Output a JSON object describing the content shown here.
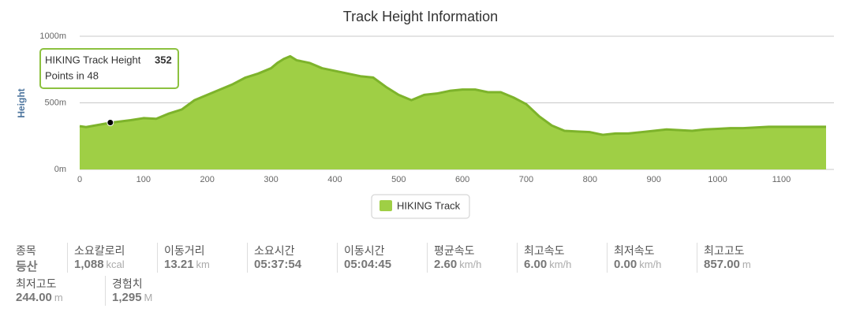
{
  "chart_data": {
    "type": "area",
    "title": "Track Height Information",
    "y_label": "Height",
    "x": [
      0,
      10,
      30,
      50,
      80,
      100,
      120,
      140,
      160,
      180,
      200,
      220,
      240,
      260,
      280,
      300,
      310,
      320,
      330,
      340,
      360,
      380,
      400,
      420,
      440,
      460,
      480,
      500,
      520,
      540,
      560,
      580,
      600,
      620,
      640,
      660,
      680,
      700,
      720,
      740,
      760,
      780,
      800,
      820,
      840,
      860,
      880,
      900,
      920,
      940,
      960,
      980,
      1000,
      1020,
      1040,
      1060,
      1080,
      1100,
      1120,
      1140,
      1160,
      1170
    ],
    "series": [
      {
        "name": "HIKING Track",
        "color": "#9fcf45",
        "line_color": "#7db32b",
        "values": [
          325,
          318,
          335,
          352,
          370,
          385,
          380,
          420,
          450,
          520,
          560,
          600,
          640,
          690,
          720,
          760,
          800,
          830,
          850,
          820,
          800,
          760,
          740,
          720,
          700,
          690,
          620,
          560,
          520,
          560,
          570,
          590,
          600,
          600,
          580,
          580,
          540,
          490,
          400,
          330,
          290,
          285,
          280,
          260,
          270,
          270,
          280,
          290,
          300,
          295,
          290,
          300,
          305,
          310,
          310,
          315,
          320,
          320,
          320,
          320,
          320,
          320
        ]
      }
    ],
    "xlim": [
      0,
      1170
    ],
    "xticks": [
      0,
      100,
      200,
      300,
      400,
      500,
      600,
      700,
      800,
      900,
      1000,
      1100
    ],
    "ylim": [
      0,
      1000
    ],
    "yticks": [
      {
        "value": 0,
        "label": "0m"
      },
      {
        "value": 500,
        "label": "500m"
      },
      {
        "value": 1000,
        "label": "1000m"
      }
    ],
    "grid": true,
    "tooltip": {
      "title": "HIKING Track Height",
      "x": 48,
      "value": 352,
      "text": "Points in 48"
    }
  },
  "stats": [
    {
      "label": "종목",
      "value": "등산"
    },
    {
      "label": "소요칼로리",
      "value": "1,088",
      "unit": "kcal"
    },
    {
      "label": "이동거리",
      "value": "13.21",
      "unit": "km"
    },
    {
      "label": "소요시간",
      "value": "05:37:54"
    },
    {
      "label": "이동시간",
      "value": "05:04:45"
    },
    {
      "label": "평균속도",
      "value": "2.60",
      "unit": "km/h"
    },
    {
      "label": "최고속도",
      "value": "6.00",
      "unit": "km/h"
    },
    {
      "label": "최저속도",
      "value": "0.00",
      "unit": "km/h"
    },
    {
      "label": "최고고도",
      "value": "857.00",
      "unit": "m"
    },
    {
      "label": "최저고도",
      "value": "244.00",
      "unit": "m"
    },
    {
      "label": "경험치",
      "value": "1,295",
      "unit": "M"
    }
  ]
}
